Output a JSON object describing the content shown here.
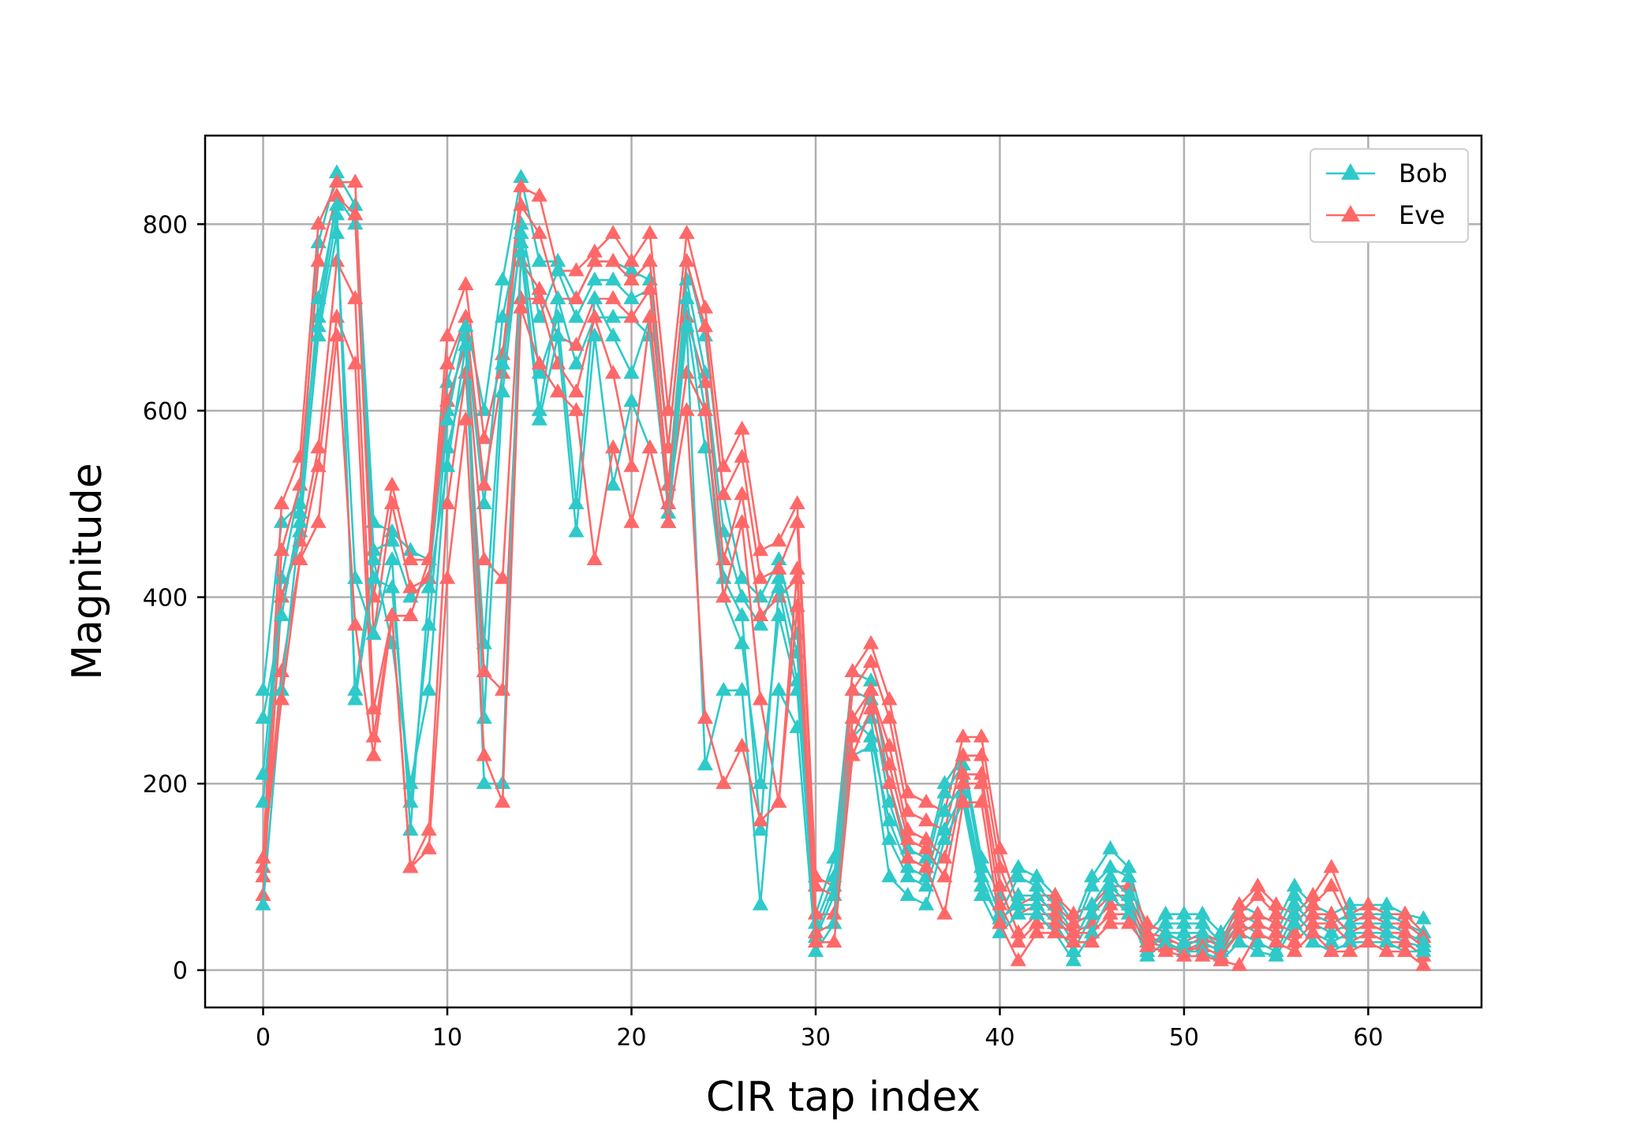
{
  "chart_data": {
    "type": "line",
    "xlabel": "CIR tap index",
    "ylabel": "Magnitude",
    "xlim": [
      -3.15,
      66.15
    ],
    "ylim": [
      -40,
      895
    ],
    "xticks": [
      0,
      10,
      20,
      30,
      40,
      50,
      60
    ],
    "yticks": [
      0,
      200,
      400,
      600,
      800
    ],
    "grid": true,
    "legend_position": "top-right",
    "marker": "triangle-up",
    "x": [
      0,
      1,
      2,
      3,
      4,
      5,
      6,
      7,
      8,
      9,
      10,
      11,
      12,
      13,
      14,
      15,
      16,
      17,
      18,
      19,
      20,
      21,
      22,
      23,
      24,
      25,
      26,
      27,
      28,
      29,
      30,
      31,
      32,
      33,
      34,
      35,
      36,
      37,
      38,
      39,
      40,
      41,
      42,
      43,
      44,
      45,
      46,
      47,
      48,
      49,
      50,
      51,
      52,
      53,
      54,
      55,
      56,
      57,
      58,
      59,
      60,
      61,
      62,
      63
    ],
    "series": [
      {
        "name": "Bob",
        "color": "#2ec9c9",
        "traces": [
          [
            300,
            480,
            500,
            780,
            855,
            820,
            480,
            470,
            450,
            440,
            630,
            700,
            600,
            740,
            850,
            760,
            760,
            720,
            760,
            760,
            750,
            740,
            560,
            760,
            680,
            510,
            420,
            400,
            440,
            360,
            60,
            120,
            320,
            310,
            200,
            130,
            120,
            200,
            230,
            120,
            80,
            110,
            100,
            80,
            50,
            100,
            130,
            110,
            40,
            60,
            60,
            60,
            40,
            70,
            60,
            50,
            90,
            70,
            60,
            70,
            70,
            70,
            60,
            55
          ],
          [
            210,
            420,
            520,
            700,
            830,
            800,
            450,
            460,
            400,
            420,
            600,
            680,
            500,
            700,
            800,
            700,
            750,
            700,
            740,
            740,
            720,
            730,
            520,
            740,
            640,
            470,
            400,
            370,
            420,
            340,
            50,
            100,
            300,
            290,
            180,
            120,
            110,
            190,
            220,
            110,
            60,
            100,
            90,
            70,
            40,
            90,
            110,
            100,
            30,
            50,
            50,
            50,
            30,
            60,
            50,
            40,
            80,
            60,
            50,
            60,
            60,
            60,
            50,
            40
          ],
          [
            180,
            400,
            470,
            690,
            810,
            300,
            440,
            350,
            200,
            300,
            560,
            640,
            350,
            650,
            780,
            600,
            720,
            650,
            700,
            700,
            700,
            680,
            500,
            700,
            560,
            400,
            350,
            200,
            380,
            300,
            40,
            90,
            270,
            250,
            160,
            110,
            100,
            170,
            200,
            100,
            50,
            80,
            80,
            60,
            30,
            70,
            100,
            80,
            25,
            40,
            40,
            40,
            25,
            50,
            40,
            30,
            70,
            50,
            40,
            50,
            50,
            50,
            40,
            30
          ],
          [
            270,
            380,
            490,
            720,
            820,
            290,
            420,
            410,
            180,
            370,
            590,
            690,
            270,
            620,
            790,
            640,
            700,
            500,
            720,
            680,
            640,
            700,
            490,
            720,
            600,
            420,
            380,
            150,
            410,
            310,
            35,
            80,
            250,
            270,
            140,
            100,
            90,
            150,
            190,
            90,
            55,
            70,
            70,
            50,
            20,
            60,
            90,
            70,
            20,
            40,
            30,
            30,
            20,
            40,
            30,
            20,
            60,
            40,
            30,
            40,
            40,
            40,
            30,
            25
          ],
          [
            70,
            300,
            480,
            680,
            790,
            420,
            360,
            440,
            150,
            410,
            540,
            670,
            200,
            200,
            770,
            590,
            680,
            470,
            680,
            520,
            610,
            560,
            480,
            690,
            220,
            300,
            300,
            70,
            300,
            260,
            20,
            50,
            230,
            240,
            100,
            80,
            70,
            140,
            180,
            80,
            40,
            60,
            60,
            40,
            10,
            40,
            80,
            60,
            15,
            30,
            20,
            20,
            10,
            30,
            20,
            15,
            50,
            30,
            20,
            30,
            30,
            30,
            20,
            20
          ]
        ]
      },
      {
        "name": "Eve",
        "color": "#ff6868",
        "traces": [
          [
            120,
            500,
            550,
            800,
            845,
            845,
            400,
            520,
            440,
            440,
            680,
            735,
            570,
            660,
            840,
            830,
            750,
            750,
            770,
            790,
            760,
            790,
            600,
            790,
            710,
            540,
            580,
            450,
            460,
            500,
            100,
            90,
            320,
            350,
            290,
            190,
            180,
            170,
            250,
            250,
            130,
            70,
            80,
            80,
            60,
            70,
            90,
            90,
            50,
            40,
            30,
            40,
            30,
            70,
            90,
            70,
            60,
            80,
            110,
            60,
            70,
            60,
            60,
            40
          ],
          [
            100,
            450,
            520,
            760,
            830,
            810,
            360,
            500,
            410,
            420,
            650,
            700,
            520,
            640,
            820,
            790,
            720,
            720,
            760,
            760,
            740,
            760,
            560,
            760,
            690,
            510,
            550,
            420,
            430,
            480,
            90,
            80,
            300,
            330,
            270,
            170,
            160,
            150,
            230,
            230,
            110,
            60,
            70,
            70,
            50,
            60,
            80,
            80,
            40,
            35,
            25,
            35,
            25,
            60,
            80,
            60,
            50,
            70,
            90,
            50,
            60,
            50,
            50,
            35
          ],
          [
            80,
            400,
            460,
            560,
            760,
            720,
            280,
            380,
            380,
            440,
            610,
            670,
            440,
            420,
            760,
            730,
            680,
            670,
            720,
            720,
            700,
            730,
            520,
            700,
            630,
            440,
            510,
            380,
            400,
            420,
            60,
            60,
            270,
            300,
            240,
            150,
            140,
            120,
            210,
            210,
            90,
            40,
            60,
            60,
            40,
            50,
            70,
            70,
            35,
            30,
            20,
            30,
            20,
            50,
            60,
            50,
            40,
            60,
            60,
            40,
            50,
            40,
            40,
            25
          ],
          [
            110,
            320,
            440,
            540,
            700,
            650,
            250,
            380,
            110,
            150,
            500,
            640,
            320,
            300,
            720,
            720,
            650,
            620,
            700,
            640,
            540,
            700,
            500,
            640,
            600,
            400,
            480,
            290,
            180,
            430,
            40,
            50,
            250,
            300,
            220,
            140,
            130,
            100,
            200,
            200,
            70,
            30,
            50,
            50,
            40,
            40,
            60,
            60,
            30,
            25,
            20,
            25,
            15,
            40,
            50,
            40,
            30,
            50,
            50,
            30,
            40,
            30,
            30,
            15
          ],
          [
            120,
            290,
            440,
            480,
            680,
            370,
            230,
            380,
            110,
            130,
            420,
            590,
            230,
            180,
            710,
            650,
            620,
            600,
            440,
            560,
            480,
            560,
            480,
            600,
            270,
            200,
            240,
            160,
            180,
            390,
            30,
            30,
            230,
            280,
            200,
            120,
            110,
            60,
            180,
            180,
            50,
            10,
            40,
            40,
            30,
            30,
            50,
            50,
            25,
            20,
            15,
            15,
            10,
            5,
            40,
            30,
            20,
            40,
            20,
            20,
            30,
            20,
            20,
            5
          ]
        ]
      }
    ]
  }
}
